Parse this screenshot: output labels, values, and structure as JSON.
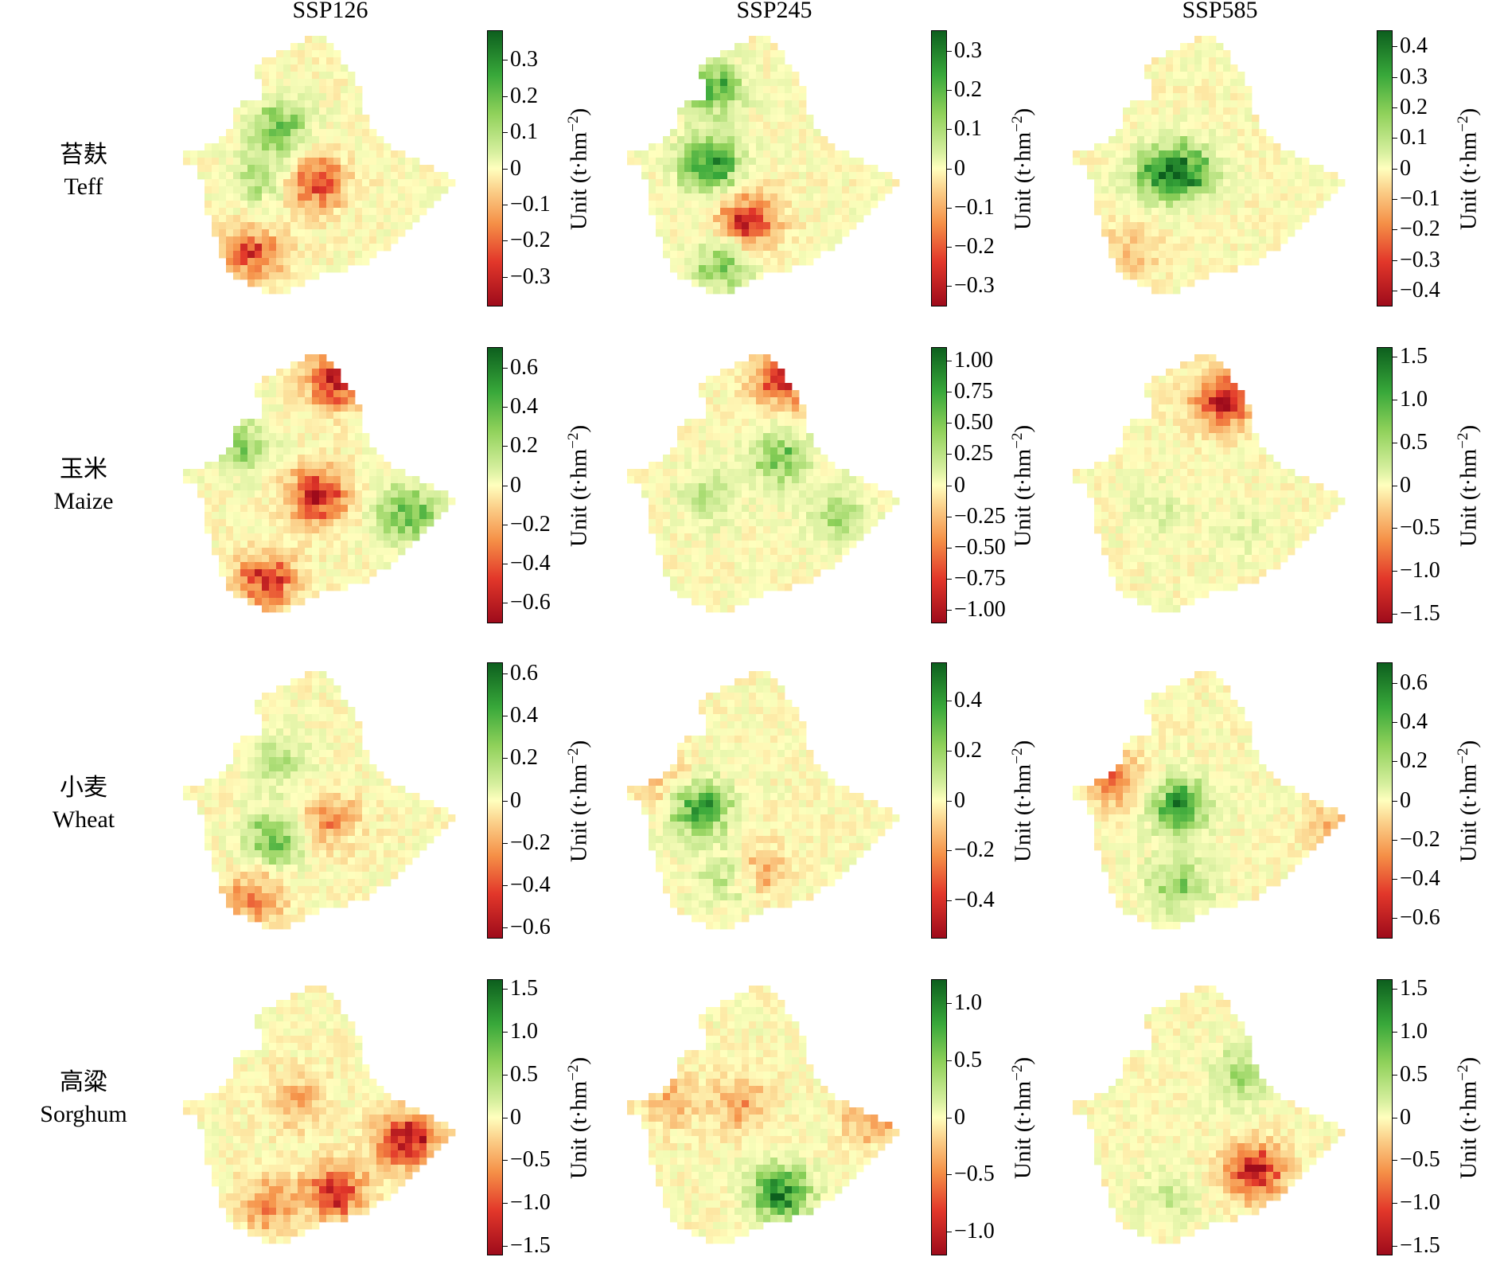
{
  "columns": [
    "SSP126",
    "SSP245",
    "SSP585"
  ],
  "rows": [
    {
      "zh": "苔麸",
      "en": "Teff"
    },
    {
      "zh": "玉米",
      "en": "Maize"
    },
    {
      "zh": "小麦",
      "en": "Wheat"
    },
    {
      "zh": "高粱",
      "en": "Sorghum"
    }
  ],
  "unit_label": "Unit (t·hm",
  "unit_sup": "−2",
  "unit_close": ")",
  "colormap": [
    "#9e0b1b",
    "#e2372a",
    "#f59047",
    "#fbd08a",
    "#ffffbe",
    "#d6ef9e",
    "#8fd15a",
    "#38a83a",
    "#0d5f1e"
  ],
  "panels": [
    {
      "row": 0,
      "col": 0,
      "range": [
        -0.38,
        0.38
      ],
      "ticks": [
        0.3,
        0.2,
        0.1,
        0,
        -0.1,
        -0.2,
        -0.3
      ],
      "tick_labels": [
        "0.3",
        "0.2",
        "0.1",
        "0",
        "−0.1",
        "−0.2",
        "−0.3"
      ],
      "hotspots": [
        {
          "u": 0.47,
          "v": 0.57,
          "val": -0.3
        },
        {
          "u": 0.25,
          "v": 0.85,
          "val": -0.28
        },
        {
          "u": 0.35,
          "v": 0.35,
          "val": 0.2
        },
        {
          "u": 0.3,
          "v": 0.55,
          "val": 0.15
        }
      ]
    },
    {
      "row": 0,
      "col": 1,
      "range": [
        -0.35,
        0.35
      ],
      "ticks": [
        0.3,
        0.2,
        0.1,
        0,
        -0.1,
        -0.2,
        -0.3
      ],
      "tick_labels": [
        "0.3",
        "0.2",
        "0.1",
        "0",
        "−0.1",
        "−0.2",
        "−0.3"
      ],
      "hotspots": [
        {
          "u": 0.3,
          "v": 0.5,
          "val": 0.3
        },
        {
          "u": 0.3,
          "v": 0.2,
          "val": 0.25
        },
        {
          "u": 0.43,
          "v": 0.72,
          "val": -0.3
        },
        {
          "u": 0.35,
          "v": 0.88,
          "val": 0.2
        }
      ]
    },
    {
      "row": 0,
      "col": 2,
      "range": [
        -0.45,
        0.45
      ],
      "ticks": [
        0.4,
        0.3,
        0.2,
        0.1,
        0,
        -0.1,
        -0.2,
        -0.3,
        -0.4
      ],
      "tick_labels": [
        "0.4",
        "0.3",
        "0.2",
        "0.1",
        "0",
        "−0.1",
        "−0.2",
        "−0.3",
        "−0.4"
      ],
      "hotspots": [
        {
          "u": 0.4,
          "v": 0.52,
          "val": 0.35
        },
        {
          "u": 0.3,
          "v": 0.55,
          "val": 0.2
        },
        {
          "u": 0.2,
          "v": 0.85,
          "val": -0.15
        }
      ]
    },
    {
      "row": 1,
      "col": 0,
      "range": [
        -0.7,
        0.7
      ],
      "ticks": [
        0.6,
        0.4,
        0.2,
        0,
        -0.2,
        -0.4,
        -0.6
      ],
      "tick_labels": [
        "0.6",
        "0.4",
        "0.2",
        "0",
        "−0.2",
        "−0.4",
        "−0.6"
      ],
      "hotspots": [
        {
          "u": 0.48,
          "v": 0.55,
          "val": -0.6
        },
        {
          "u": 0.3,
          "v": 0.88,
          "val": -0.55
        },
        {
          "u": 0.8,
          "v": 0.62,
          "val": 0.45
        },
        {
          "u": 0.2,
          "v": 0.35,
          "val": 0.35
        },
        {
          "u": 0.55,
          "v": 0.1,
          "val": -0.6
        }
      ]
    },
    {
      "row": 1,
      "col": 1,
      "range": [
        -1.1,
        1.1
      ],
      "ticks": [
        1.0,
        0.75,
        0.5,
        0.25,
        0,
        -0.25,
        -0.5,
        -0.75,
        -1.0
      ],
      "tick_labels": [
        "1.00",
        "0.75",
        "0.50",
        "0.25",
        "0",
        "−0.25",
        "−0.50",
        "−0.75",
        "−1.00"
      ],
      "hotspots": [
        {
          "u": 0.56,
          "v": 0.1,
          "val": -0.9
        },
        {
          "u": 0.55,
          "v": 0.4,
          "val": 0.6
        },
        {
          "u": 0.3,
          "v": 0.55,
          "val": 0.35
        },
        {
          "u": 0.75,
          "v": 0.62,
          "val": 0.4
        }
      ]
    },
    {
      "row": 1,
      "col": 2,
      "range": [
        -1.6,
        1.6
      ],
      "ticks": [
        1.5,
        1.0,
        0.5,
        0,
        -0.5,
        -1.0,
        -1.5
      ],
      "tick_labels": [
        "1.5",
        "1.0",
        "0.5",
        "0",
        "−0.5",
        "−1.0",
        "−1.5"
      ],
      "hotspots": [
        {
          "u": 0.54,
          "v": 0.18,
          "val": -1.4
        },
        {
          "u": 0.3,
          "v": 0.6,
          "val": 0.3
        },
        {
          "u": 0.6,
          "v": 0.7,
          "val": 0.25
        }
      ]
    },
    {
      "row": 2,
      "col": 0,
      "range": [
        -0.65,
        0.65
      ],
      "ticks": [
        0.6,
        0.4,
        0.2,
        0,
        -0.2,
        -0.4,
        -0.6
      ],
      "tick_labels": [
        "0.6",
        "0.4",
        "0.2",
        "0",
        "−0.2",
        "−0.4",
        "−0.6"
      ],
      "hotspots": [
        {
          "u": 0.33,
          "v": 0.65,
          "val": 0.4
        },
        {
          "u": 0.52,
          "v": 0.58,
          "val": -0.3
        },
        {
          "u": 0.25,
          "v": 0.88,
          "val": -0.35
        },
        {
          "u": 0.35,
          "v": 0.35,
          "val": 0.2
        }
      ]
    },
    {
      "row": 2,
      "col": 1,
      "range": [
        -0.55,
        0.55
      ],
      "ticks": [
        0.4,
        0.2,
        0,
        -0.2,
        -0.4
      ],
      "tick_labels": [
        "0.4",
        "0.2",
        "0",
        "−0.2",
        "−0.4"
      ],
      "hotspots": [
        {
          "u": 0.25,
          "v": 0.53,
          "val": 0.5
        },
        {
          "u": 0.38,
          "v": 0.8,
          "val": 0.3
        },
        {
          "u": 0.45,
          "v": 0.78,
          "val": -0.3
        },
        {
          "u": 0.15,
          "v": 0.45,
          "val": -0.2
        }
      ]
    },
    {
      "row": 2,
      "col": 2,
      "range": [
        -0.7,
        0.7
      ],
      "ticks": [
        0.6,
        0.4,
        0.2,
        0,
        -0.2,
        -0.4,
        -0.6
      ],
      "tick_labels": [
        "0.6",
        "0.4",
        "0.2",
        "0",
        "−0.2",
        "−0.4",
        "−0.6"
      ],
      "hotspots": [
        {
          "u": 0.38,
          "v": 0.52,
          "val": 0.55
        },
        {
          "u": 0.38,
          "v": 0.82,
          "val": 0.35
        },
        {
          "u": 0.15,
          "v": 0.42,
          "val": -0.35
        },
        {
          "u": 0.95,
          "v": 0.6,
          "val": -0.25
        }
      ]
    },
    {
      "row": 3,
      "col": 0,
      "range": [
        -1.6,
        1.6
      ],
      "ticks": [
        1.5,
        1.0,
        0.5,
        0,
        -0.5,
        -1.0,
        -1.5
      ],
      "tick_labels": [
        "1.5",
        "1.0",
        "0.5",
        "0",
        "−0.5",
        "−1.0",
        "−1.5"
      ],
      "hotspots": [
        {
          "u": 0.8,
          "v": 0.6,
          "val": -1.5
        },
        {
          "u": 0.55,
          "v": 0.8,
          "val": -1.3
        },
        {
          "u": 0.3,
          "v": 0.85,
          "val": -0.8
        },
        {
          "u": 0.4,
          "v": 0.45,
          "val": -0.6
        }
      ]
    },
    {
      "row": 3,
      "col": 1,
      "range": [
        -1.2,
        1.2
      ],
      "ticks": [
        1.0,
        0.5,
        0,
        -0.5,
        -1.0
      ],
      "tick_labels": [
        "1.0",
        "0.5",
        "0",
        "−0.5",
        "−1.0"
      ],
      "hotspots": [
        {
          "u": 0.55,
          "v": 0.8,
          "val": 1.0
        },
        {
          "u": 0.4,
          "v": 0.45,
          "val": -0.5
        },
        {
          "u": 0.15,
          "v": 0.45,
          "val": -0.4
        },
        {
          "u": 0.88,
          "v": 0.5,
          "val": -0.6
        }
      ]
    },
    {
      "row": 3,
      "col": 2,
      "range": [
        -1.6,
        1.6
      ],
      "ticks": [
        1.5,
        1.0,
        0.5,
        0,
        -0.5,
        -1.0,
        -1.5
      ],
      "tick_labels": [
        "1.5",
        "1.0",
        "0.5",
        "0",
        "−0.5",
        "−1.0",
        "−1.5"
      ],
      "hotspots": [
        {
          "u": 0.65,
          "v": 0.72,
          "val": -1.4
        },
        {
          "u": 0.6,
          "v": 0.35,
          "val": 0.6
        },
        {
          "u": 0.35,
          "v": 0.82,
          "val": 0.4
        }
      ]
    }
  ]
}
